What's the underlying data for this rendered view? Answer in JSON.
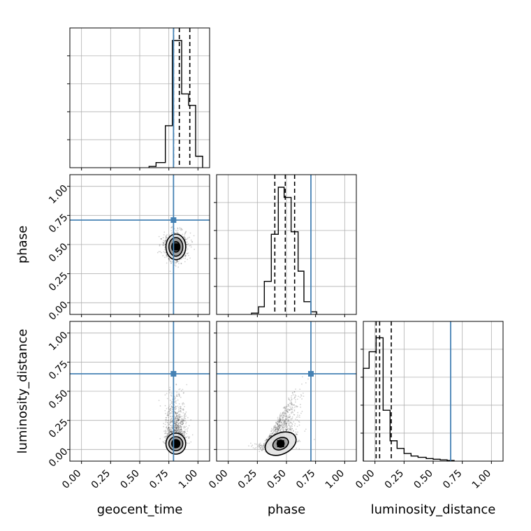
{
  "chart_data": {
    "type": "corner",
    "parameters": [
      "geocent_time",
      "phase",
      "luminosity_distance"
    ],
    "axis_range": [
      -0.1,
      1.1
    ],
    "ticks": [
      "0.00",
      "0.25",
      "0.50",
      "0.75",
      "1.00"
    ],
    "tick_values": [
      0,
      0.25,
      0.5,
      0.75,
      1.0
    ],
    "grid": true,
    "truths": {
      "geocent_time": 0.79,
      "phase": 0.71,
      "luminosity_distance": 0.65
    },
    "truth_color": "#4682b4",
    "line_color": "#000000",
    "histograms": [
      {
        "parameter": "geocent_time",
        "quantiles": [
          0.79,
          0.84,
          0.93
        ],
        "bins": [
          {
            "x0": 0.58,
            "x1": 0.64,
            "h": 0.01
          },
          {
            "x0": 0.64,
            "x1": 0.72,
            "h": 0.04
          },
          {
            "x0": 0.72,
            "x1": 0.78,
            "h": 0.33
          },
          {
            "x0": 0.78,
            "x1": 0.86,
            "h": 1.0
          },
          {
            "x0": 0.86,
            "x1": 0.92,
            "h": 0.58
          },
          {
            "x0": 0.92,
            "x1": 0.98,
            "h": 0.49
          },
          {
            "x0": 0.98,
            "x1": 1.04,
            "h": 0.09
          }
        ]
      },
      {
        "parameter": "phase",
        "quantiles": [
          0.4,
          0.49,
          0.57
        ],
        "bins": [
          {
            "x0": 0.2,
            "x1": 0.26,
            "h": 0.01
          },
          {
            "x0": 0.26,
            "x1": 0.31,
            "h": 0.06
          },
          {
            "x0": 0.31,
            "x1": 0.37,
            "h": 0.26
          },
          {
            "x0": 0.37,
            "x1": 0.43,
            "h": 0.63
          },
          {
            "x0": 0.43,
            "x1": 0.48,
            "h": 1.0
          },
          {
            "x0": 0.48,
            "x1": 0.54,
            "h": 0.92
          },
          {
            "x0": 0.54,
            "x1": 0.6,
            "h": 0.65
          },
          {
            "x0": 0.6,
            "x1": 0.65,
            "h": 0.34
          },
          {
            "x0": 0.65,
            "x1": 0.71,
            "h": 0.1
          },
          {
            "x0": 0.71,
            "x1": 0.76,
            "h": 0.02
          }
        ]
      },
      {
        "parameter": "luminosity_distance",
        "quantiles": [
          0.01,
          0.04,
          0.14
        ],
        "bins": [
          {
            "x0": -0.1,
            "x1": -0.05,
            "h": 0.73
          },
          {
            "x0": -0.05,
            "x1": 0.01,
            "h": 0.86
          },
          {
            "x0": 0.01,
            "x1": 0.07,
            "h": 0.97
          },
          {
            "x0": 0.07,
            "x1": 0.13,
            "h": 0.4
          },
          {
            "x0": 0.13,
            "x1": 0.19,
            "h": 0.16
          },
          {
            "x0": 0.19,
            "x1": 0.25,
            "h": 0.1
          },
          {
            "x0": 0.25,
            "x1": 0.31,
            "h": 0.06
          },
          {
            "x0": 0.31,
            "x1": 0.37,
            "h": 0.04
          },
          {
            "x0": 0.37,
            "x1": 0.44,
            "h": 0.03
          },
          {
            "x0": 0.44,
            "x1": 0.5,
            "h": 0.02
          },
          {
            "x0": 0.5,
            "x1": 0.56,
            "h": 0.015
          },
          {
            "x0": 0.56,
            "x1": 0.62,
            "h": 0.01
          },
          {
            "x0": 0.62,
            "x1": 0.68,
            "h": 0.005
          }
        ]
      }
    ],
    "scatter_panels": [
      {
        "x_param": "geocent_time",
        "y_param": "phase",
        "center": [
          0.81,
          0.48
        ],
        "spread": [
          0.05,
          0.06
        ],
        "contours": [
          [
            0.035,
            0.045
          ],
          [
            0.06,
            0.08
          ],
          [
            0.085,
            0.11
          ]
        ]
      },
      {
        "x_param": "geocent_time",
        "y_param": "luminosity_distance",
        "center": [
          0.81,
          0.05
        ],
        "spread": [
          0.045,
          0.08
        ],
        "contours": [
          [
            0.035,
            0.035
          ],
          [
            0.06,
            0.06
          ],
          [
            0.085,
            0.09
          ]
        ]
      },
      {
        "x_param": "phase",
        "y_param": "luminosity_distance",
        "center": [
          0.45,
          0.05
        ],
        "spread": [
          0.07,
          0.07
        ],
        "contours": [
          [
            0.03,
            0.03
          ],
          [
            0.07,
            0.05
          ],
          [
            0.14,
            0.09
          ]
        ]
      }
    ]
  }
}
